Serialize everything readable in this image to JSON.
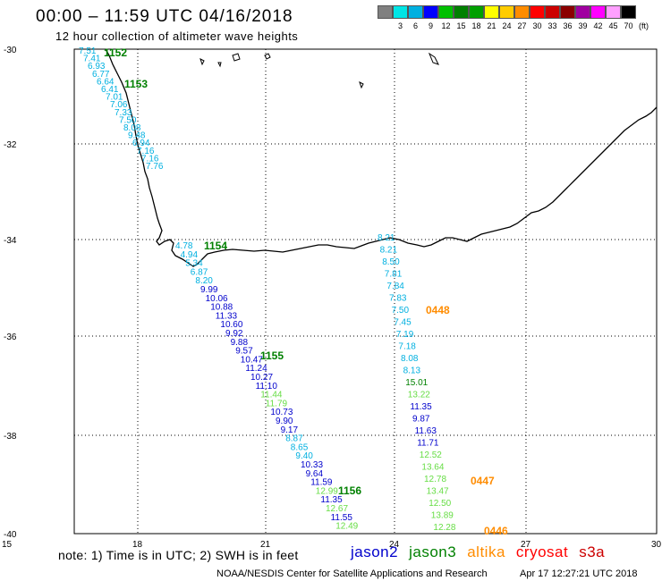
{
  "header": {
    "title": "00:00 – 11:59 UTC 04/16/2018",
    "subtitle": "12 hour collection of altimeter wave heights"
  },
  "color_scale": {
    "colors": [
      "#808080",
      "#00e5e5",
      "#00b0e0",
      "#0000ff",
      "#00c000",
      "#008000",
      "#00a000",
      "#ffff00",
      "#ffcc00",
      "#ff8c00",
      "#ff0000",
      "#cc0000",
      "#8b0000",
      "#a000a0",
      "#ff00ff",
      "#ffa0ff",
      "#000000"
    ],
    "labels": [
      "",
      "3",
      "6",
      "9",
      "12",
      "15",
      "18",
      "21",
      "24",
      "27",
      "30",
      "33",
      "36",
      "39",
      "42",
      "45",
      "70",
      "(ft)"
    ]
  },
  "axes": {
    "x_ticks": [
      "15",
      "18",
      "21",
      "24",
      "27",
      "30"
    ],
    "y_ticks": [
      "-30",
      "-32",
      "-34",
      "-36",
      "-38",
      "-40"
    ]
  },
  "passes": [
    {
      "label": "1152",
      "color": "#008000"
    },
    {
      "label": "1153",
      "color": "#008000"
    },
    {
      "label": "1154",
      "color": "#008000"
    },
    {
      "label": "1155",
      "color": "#008000"
    },
    {
      "label": "1156",
      "color": "#008000"
    },
    {
      "label": "0448",
      "color": "#ff8c00"
    },
    {
      "label": "0447",
      "color": "#ff8c00"
    },
    {
      "label": "0446",
      "color": "#ff8c00"
    }
  ],
  "track_east": [
    {
      "v": "8.21",
      "c": "#00b0e0"
    },
    {
      "v": "8.21",
      "c": "#00b0e0"
    },
    {
      "v": "8.50",
      "c": "#00b0e0"
    },
    {
      "v": "7.81",
      "c": "#00b0e0"
    },
    {
      "v": "7.84",
      "c": "#00b0e0"
    },
    {
      "v": "7.83",
      "c": "#00b0e0"
    },
    {
      "v": "7.50",
      "c": "#00b0e0"
    },
    {
      "v": "7.45",
      "c": "#00b0e0"
    },
    {
      "v": "7.19",
      "c": "#00b0e0"
    },
    {
      "v": "7.18",
      "c": "#00b0e0"
    },
    {
      "v": "8.08",
      "c": "#00b0e0"
    },
    {
      "v": "8.13",
      "c": "#00b0e0"
    },
    {
      "v": "15.01",
      "c": "#008000"
    },
    {
      "v": "13.22",
      "c": "#66dd44"
    },
    {
      "v": "11.35",
      "c": "#0000cc"
    },
    {
      "v": "9.87",
      "c": "#0000cc"
    },
    {
      "v": "11.63",
      "c": "#0000cc"
    },
    {
      "v": "11.71",
      "c": "#0000cc"
    },
    {
      "v": "12.52",
      "c": "#66dd44"
    },
    {
      "v": "13.64",
      "c": "#66dd44"
    },
    {
      "v": "12.78",
      "c": "#66dd44"
    },
    {
      "v": "13.47",
      "c": "#66dd44"
    },
    {
      "v": "12.50",
      "c": "#66dd44"
    },
    {
      "v": "13.89",
      "c": "#66dd44"
    },
    {
      "v": "12.28",
      "c": "#66dd44"
    }
  ],
  "track_northwest": [
    "7.51",
    "7.41",
    "6.93",
    "6.77",
    "6.64",
    "6.41",
    "7.01",
    "7.06",
    "7.33",
    "7.50",
    "8.08",
    "9.48",
    "6.94",
    "7.16",
    "7.16",
    "7.76"
  ],
  "track_south": [
    {
      "v": "4.78",
      "c": "#00b0e0"
    },
    {
      "v": "4.94",
      "c": "#00b0e0"
    },
    {
      "v": "5.34",
      "c": "#00b0e0"
    },
    {
      "v": "6.87",
      "c": "#00b0e0"
    },
    {
      "v": "8.20",
      "c": "#00b0e0"
    },
    {
      "v": "9.99",
      "c": "#0000cc"
    },
    {
      "v": "10.06",
      "c": "#0000cc"
    },
    {
      "v": "10.88",
      "c": "#0000cc"
    },
    {
      "v": "11.33",
      "c": "#0000cc"
    },
    {
      "v": "10.60",
      "c": "#0000cc"
    },
    {
      "v": "9.92",
      "c": "#0000cc"
    },
    {
      "v": "9.88",
      "c": "#0000cc"
    },
    {
      "v": "9.57",
      "c": "#0000cc"
    },
    {
      "v": "10.47",
      "c": "#0000cc"
    },
    {
      "v": "11.24",
      "c": "#0000cc"
    },
    {
      "v": "10.27",
      "c": "#0000cc"
    },
    {
      "v": "11.10",
      "c": "#0000cc"
    },
    {
      "v": "11.44",
      "c": "#66dd44"
    },
    {
      "v": "11.79",
      "c": "#66dd44"
    },
    {
      "v": "10.73",
      "c": "#0000cc"
    },
    {
      "v": "9.90",
      "c": "#0000cc"
    },
    {
      "v": "9.17",
      "c": "#0000cc"
    },
    {
      "v": "8.87",
      "c": "#00b0e0"
    },
    {
      "v": "8.65",
      "c": "#00b0e0"
    },
    {
      "v": "9.40",
      "c": "#00b0e0"
    },
    {
      "v": "10.33",
      "c": "#0000cc"
    },
    {
      "v": "9.64",
      "c": "#0000cc"
    },
    {
      "v": "11.59",
      "c": "#0000cc"
    },
    {
      "v": "12.99",
      "c": "#66dd44"
    },
    {
      "v": "11.35",
      "c": "#0000cc"
    },
    {
      "v": "12.67",
      "c": "#66dd44"
    },
    {
      "v": "11.55",
      "c": "#0000cc"
    },
    {
      "v": "12.49",
      "c": "#66dd44"
    }
  ],
  "footer": {
    "note": "note:  1) Time is in UTC;  2) SWH is in feet",
    "legend": [
      {
        "name": "jason2",
        "color": "#0000cc"
      },
      {
        "name": "jason3",
        "color": "#008000"
      },
      {
        "name": "altika",
        "color": "#ff8c00"
      },
      {
        "name": "cryosat",
        "color": "#ff0000"
      },
      {
        "name": "s3a",
        "color": "#cc0000"
      }
    ],
    "credit": "NOAA/NESDIS Center for Satellite Applications and Research",
    "timestamp": "Apr 17 12:27:21 UTC 2018"
  }
}
